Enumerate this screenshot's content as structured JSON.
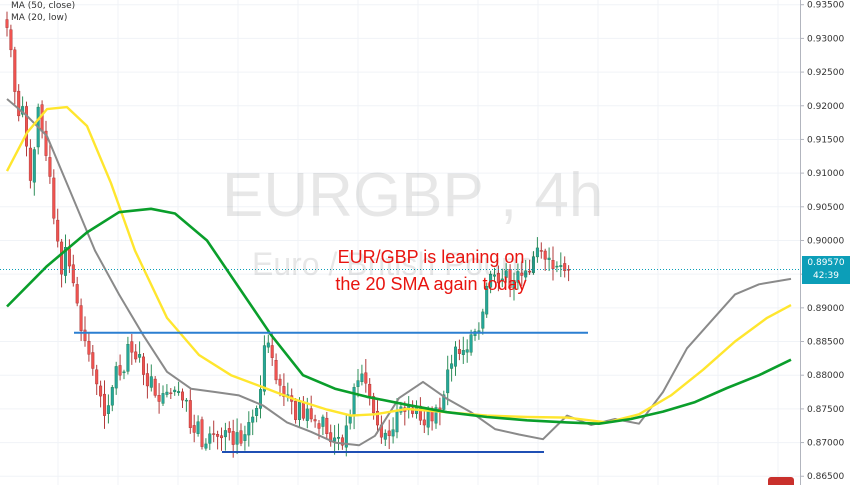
{
  "legend": [
    "MA (50, close)",
    "MA (20, low)"
  ],
  "watermark": {
    "symbol": "EURGBP , 4h",
    "name": "Euro / British Pound"
  },
  "annotation": {
    "line1": "EUR/GBP is leaning on",
    "line2": "the 20 SMA again today"
  },
  "price_tag": {
    "price": "0.89570",
    "countdown": "42:39"
  },
  "colors": {
    "up": "#26a69a",
    "down": "#ef5350",
    "candle": "#3a3a3a",
    "ma50": "#0a9e2b",
    "ma20": "#ffe62e",
    "ma_gray": "#8a8a8a",
    "support_line": "#1f4fb4",
    "resistance_line": "#2b7fd1",
    "price_tag_bg": "#0c9eb8",
    "annotation": "#e8140f"
  },
  "chart_data": {
    "type": "candlestick",
    "y_axis": {
      "range": [
        0.8637,
        0.9357
      ],
      "ticks": [
        "0.86500",
        "0.87000",
        "0.87500",
        "0.88000",
        "0.88500",
        "0.89000",
        "0.89500",
        "0.90000",
        "0.90500",
        "0.91000",
        "0.91500",
        "0.92000",
        "0.92500",
        "0.93000",
        "0.93500"
      ],
      "position": "right"
    },
    "current_price": 0.8957,
    "candles": 145,
    "close": [
      0.9316,
      0.9283,
      0.9221,
      0.9185,
      0.9199,
      0.914,
      0.9089,
      0.9135,
      0.9198,
      0.9162,
      0.9126,
      0.9095,
      0.9033,
      0.8999,
      0.895,
      0.899,
      0.8962,
      0.8937,
      0.8907,
      0.8866,
      0.8851,
      0.8831,
      0.881,
      0.8787,
      0.8769,
      0.874,
      0.8755,
      0.8782,
      0.8813,
      0.88,
      0.8805,
      0.8846,
      0.8834,
      0.8824,
      0.8831,
      0.8801,
      0.8784,
      0.8798,
      0.877,
      0.8761,
      0.8773,
      0.8775,
      0.8773,
      0.8778,
      0.8776,
      0.8763,
      0.8763,
      0.8722,
      0.8715,
      0.8731,
      0.8694,
      0.8698,
      0.8713,
      0.8713,
      0.8709,
      0.8707,
      0.8718,
      0.8715,
      0.8697,
      0.8715,
      0.8699,
      0.8712,
      0.873,
      0.8738,
      0.8751,
      0.8779,
      0.8844,
      0.8848,
      0.8826,
      0.8793,
      0.8785,
      0.8768,
      0.8771,
      0.8761,
      0.8734,
      0.876,
      0.8736,
      0.875,
      0.8735,
      0.8732,
      0.8721,
      0.8738,
      0.8713,
      0.8701,
      0.8707,
      0.8708,
      0.8696,
      0.8725,
      0.8741,
      0.8782,
      0.8792,
      0.8802,
      0.8788,
      0.8768,
      0.8744,
      0.8726,
      0.8708,
      0.8714,
      0.871,
      0.8719,
      0.8747,
      0.8753,
      0.8746,
      0.8755,
      0.8743,
      0.8754,
      0.8733,
      0.8726,
      0.8751,
      0.8732,
      0.8752,
      0.8746,
      0.8771,
      0.8808,
      0.8817,
      0.8842,
      0.8832,
      0.8837,
      0.8838,
      0.886,
      0.8865,
      0.8866,
      0.8894,
      0.8932,
      0.895,
      0.8949,
      0.8937,
      0.8943,
      0.8955,
      0.893,
      0.8941,
      0.8954,
      0.8948,
      0.8955,
      0.8953,
      0.8976,
      0.8989,
      0.8984,
      0.8972,
      0.8974,
      0.8958,
      0.8962,
      0.8963,
      0.8955,
      0.8957
    ],
    "series": [
      {
        "name": "MA (50, close)",
        "color": "#0a9e2b",
        "points": [
          [
            0,
            0.8902
          ],
          [
            10,
            0.8962
          ],
          [
            20,
            0.9012
          ],
          [
            28,
            0.9042
          ],
          [
            36,
            0.9047
          ],
          [
            42,
            0.904
          ],
          [
            50,
            0.9
          ],
          [
            58,
            0.893
          ],
          [
            66,
            0.886
          ],
          [
            74,
            0.88
          ],
          [
            82,
            0.878
          ],
          [
            90,
            0.8768
          ],
          [
            100,
            0.8756
          ],
          [
            110,
            0.8745
          ],
          [
            120,
            0.8738
          ],
          [
            130,
            0.8733
          ],
          [
            140,
            0.873
          ],
          [
            148,
            0.8728
          ],
          [
            156,
            0.8735
          ],
          [
            164,
            0.8746
          ],
          [
            172,
            0.876
          ],
          [
            180,
            0.8781
          ],
          [
            188,
            0.88
          ],
          [
            196,
            0.8823
          ]
        ]
      },
      {
        "name": "MA (20, low)",
        "color": "#ffe62e",
        "points": [
          [
            0,
            0.9103
          ],
          [
            5,
            0.916
          ],
          [
            10,
            0.9195
          ],
          [
            15,
            0.9198
          ],
          [
            20,
            0.917
          ],
          [
            26,
            0.9085
          ],
          [
            32,
            0.8985
          ],
          [
            40,
            0.8885
          ],
          [
            48,
            0.883
          ],
          [
            56,
            0.88
          ],
          [
            64,
            0.8782
          ],
          [
            72,
            0.8764
          ],
          [
            80,
            0.8749
          ],
          [
            86,
            0.874
          ],
          [
            92,
            0.8742
          ],
          [
            100,
            0.875
          ],
          [
            110,
            0.8745
          ],
          [
            120,
            0.874
          ],
          [
            130,
            0.8738
          ],
          [
            140,
            0.8737
          ],
          [
            150,
            0.873
          ],
          [
            158,
            0.8742
          ],
          [
            166,
            0.877
          ],
          [
            174,
            0.8808
          ],
          [
            182,
            0.885
          ],
          [
            190,
            0.8885
          ],
          [
            196,
            0.8904
          ]
        ]
      }
    ],
    "gray_ma": [
      [
        0,
        0.921
      ],
      [
        5,
        0.9185
      ],
      [
        10,
        0.9155
      ],
      [
        16,
        0.907
      ],
      [
        22,
        0.8985
      ],
      [
        28,
        0.892
      ],
      [
        34,
        0.886
      ],
      [
        40,
        0.8805
      ],
      [
        46,
        0.878
      ],
      [
        52,
        0.8775
      ],
      [
        58,
        0.877
      ],
      [
        64,
        0.8755
      ],
      [
        70,
        0.873
      ],
      [
        76,
        0.8716
      ],
      [
        82,
        0.87
      ],
      [
        88,
        0.8696
      ],
      [
        92,
        0.871
      ],
      [
        98,
        0.8766
      ],
      [
        104,
        0.879
      ],
      [
        110,
        0.8765
      ],
      [
        116,
        0.8745
      ],
      [
        122,
        0.872
      ],
      [
        128,
        0.8712
      ],
      [
        134,
        0.8705
      ],
      [
        140,
        0.874
      ],
      [
        146,
        0.8726
      ],
      [
        152,
        0.8735
      ],
      [
        158,
        0.8728
      ],
      [
        164,
        0.8775
      ],
      [
        170,
        0.884
      ],
      [
        176,
        0.888
      ],
      [
        182,
        0.892
      ],
      [
        188,
        0.8935
      ],
      [
        196,
        0.8943
      ]
    ],
    "horizontal_lines": [
      {
        "kind": "resistance",
        "level": 0.8863,
        "from": 14,
        "to": 141
      },
      {
        "kind": "support",
        "level": 0.8686,
        "from": 51,
        "to": 130
      }
    ]
  }
}
